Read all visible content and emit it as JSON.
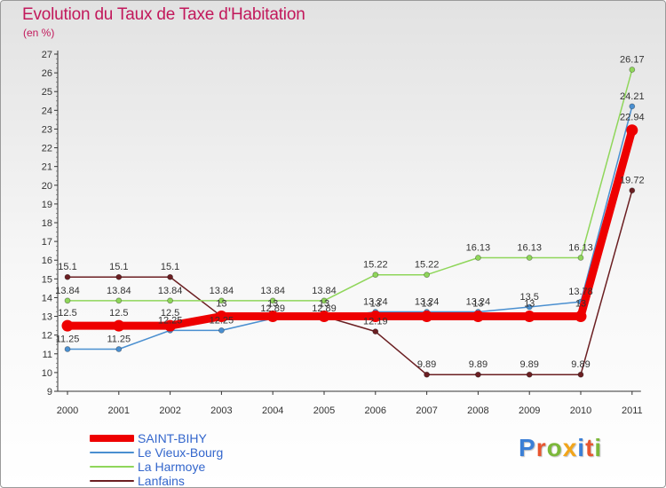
{
  "title": "Evolution du Taux de Taxe d'Habitation",
  "unit_label": "(en %)",
  "brand": {
    "text": "Proxiti",
    "colors": [
      "#3b7fd6",
      "#e8552f",
      "#7cb83a",
      "#f2a51a",
      "#3b7fd6",
      "#e8552f",
      "#7cb83a"
    ]
  },
  "chart_data": {
    "type": "line",
    "title": "Evolution du Taux de Taxe d'Habitation",
    "ylabel": "(en %)",
    "xlabel": "",
    "categories": [
      "2000",
      "2001",
      "2002",
      "2003",
      "2004",
      "2005",
      "2006",
      "2007",
      "2008",
      "2009",
      "2010",
      "2011"
    ],
    "ylim": [
      9,
      27
    ],
    "yticks": [
      "9",
      "10",
      "11",
      "12",
      "13",
      "14",
      "15",
      "16",
      "17",
      "18",
      "19",
      "20",
      "21",
      "22",
      "23",
      "24",
      "25",
      "26",
      "27"
    ],
    "grid": false,
    "series": [
      {
        "name": "Lanfains",
        "color": "#6b1f22",
        "values": [
          15.1,
          15.1,
          15.1,
          13,
          13,
          13,
          12.19,
          9.89,
          9.89,
          9.89,
          9.89,
          19.72
        ],
        "labels": [
          "15.1",
          "15.1",
          "15.1",
          "",
          "",
          "",
          "12.19",
          "9.89",
          "9.89",
          "9.89",
          "9.89",
          "19.72"
        ]
      },
      {
        "name": "La Harmoye",
        "color": "#8fd65a",
        "values": [
          13.84,
          13.84,
          13.84,
          13.84,
          13.84,
          13.84,
          15.22,
          15.22,
          16.13,
          16.13,
          16.13,
          26.17
        ],
        "labels": [
          "13.84",
          "13.84",
          "13.84",
          "13.84",
          "13.84",
          "13.84",
          "15.22",
          "15.22",
          "16.13",
          "16.13",
          "16.13",
          "26.17"
        ]
      },
      {
        "name": "Le Vieux-Bourg",
        "color": "#4a8fd0",
        "values": [
          11.25,
          11.25,
          12.25,
          12.25,
          12.89,
          12.89,
          13.24,
          13.24,
          13.24,
          13.5,
          13.78,
          24.21
        ],
        "labels": [
          "11.25",
          "11.25",
          "12.25",
          "12.25",
          "12.89",
          "12.89",
          "13.24",
          "13.24",
          "13.24",
          "13.5",
          "13.78",
          "24.21"
        ]
      },
      {
        "name": "SAINT-BIHY",
        "color": "#ee0000",
        "values": [
          12.5,
          12.5,
          12.5,
          13,
          13,
          13,
          13,
          13,
          13,
          13,
          13,
          22.94
        ],
        "labels": [
          "12.5",
          "12.5",
          "12.5",
          "13",
          "13",
          "13",
          "13",
          "13",
          "13",
          "13",
          "13",
          "22.94"
        ]
      }
    ],
    "legend": [
      "SAINT-BIHY",
      "Le Vieux-Bourg",
      "La Harmoye",
      "Lanfains"
    ],
    "legend_position": "bottom-left"
  }
}
